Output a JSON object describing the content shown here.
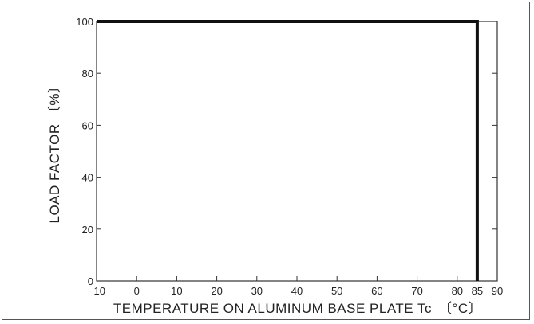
{
  "chart_data": {
    "type": "line",
    "title": "",
    "xlabel": "TEMPERATURE ON ALUMINUM BASE PLATE Tc",
    "xlabel_unit": "〔°C〕",
    "ylabel": "LOAD FACTOR 〔%〕",
    "xlim": [
      -10,
      90
    ],
    "ylim": [
      0,
      100
    ],
    "x_ticks": [
      -10,
      0,
      10,
      20,
      30,
      40,
      50,
      60,
      70,
      80,
      85,
      90
    ],
    "x_tick_labels": [
      "−10",
      "0",
      "10",
      "20",
      "30",
      "40",
      "50",
      "60",
      "70",
      "80",
      "85",
      "90"
    ],
    "y_ticks": [
      0,
      20,
      40,
      60,
      80,
      100
    ],
    "y_tick_labels": [
      "0",
      "20",
      "40",
      "60",
      "80",
      "100"
    ],
    "grid": false,
    "series": [
      {
        "x": [
          -10,
          85,
          85
        ],
        "y": [
          100,
          100,
          0
        ]
      }
    ],
    "colors": {
      "line": "#111111",
      "axes": "#333333"
    }
  }
}
